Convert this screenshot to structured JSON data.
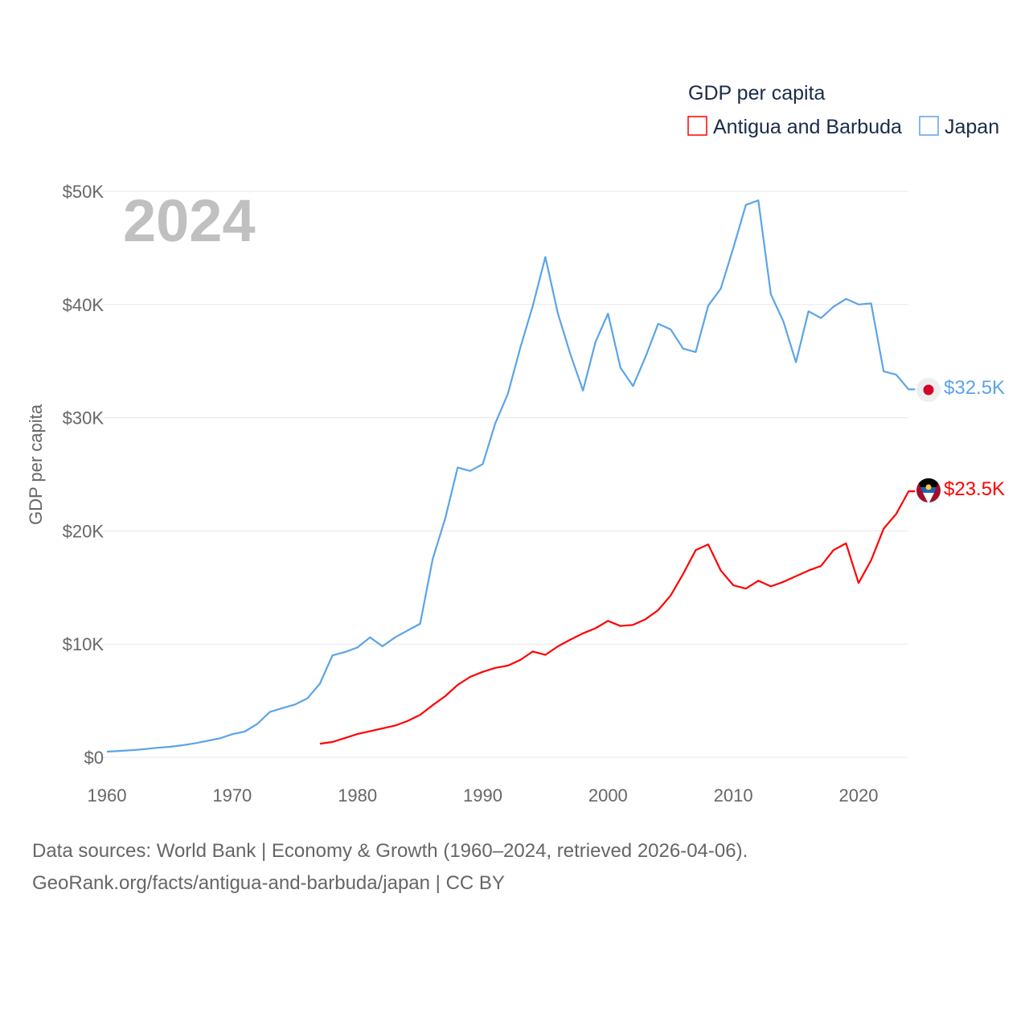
{
  "chart_data": {
    "type": "line",
    "title": "GDP per capita",
    "ylabel": "GDP per capita",
    "xlabel": "",
    "year_label": "2024",
    "xlim": [
      1960,
      2024
    ],
    "ylim": [
      0,
      50000
    ],
    "x_ticks": [
      1960,
      1970,
      1980,
      1990,
      2000,
      2010,
      2020
    ],
    "y_ticks": [
      0,
      10000,
      20000,
      30000,
      40000,
      50000
    ],
    "y_tick_labels": [
      "$0",
      "$10K",
      "$20K",
      "$30K",
      "$40K",
      "$50K"
    ],
    "grid": true,
    "legend_position": "top-right",
    "series": [
      {
        "name": "Antigua and Barbuda",
        "color": "#ff0000",
        "end_label": "$23.5K",
        "flag_icon": "antigua-and-barbuda-flag",
        "start_year": 1977,
        "values": [
          1200,
          1350,
          1700,
          2050,
          2300,
          2550,
          2800,
          3200,
          3750,
          4600,
          5400,
          6400,
          7100,
          7550,
          7900,
          8100,
          8600,
          9350,
          9050,
          9800,
          10400,
          10950,
          11400,
          12050,
          11600,
          11700,
          12200,
          13000,
          14300,
          16200,
          18300,
          18800,
          16500,
          15200,
          14900,
          15600,
          15100,
          15500,
          16000,
          16500,
          16900,
          18300,
          18900,
          15400,
          17400,
          20200,
          21500,
          23500
        ]
      },
      {
        "name": "Japan",
        "color": "#5ba4e8",
        "end_label": "$32.5K",
        "flag_icon": "japan-flag",
        "start_year": 1960,
        "values": [
          500,
          560,
          630,
          720,
          840,
          920,
          1060,
          1230,
          1450,
          1670,
          2040,
          2270,
          2950,
          4000,
          4350,
          4660,
          5200,
          6500,
          9000,
          9300,
          9700,
          10600,
          9800,
          10600,
          11200,
          11800,
          17500,
          21100,
          25600,
          25300,
          25900,
          29500,
          32100,
          36200,
          39900,
          44200,
          39200,
          35600,
          32400,
          36700,
          39200,
          34400,
          32800,
          35400,
          38300,
          37800,
          36100,
          35800,
          39900,
          41400,
          45000,
          48800,
          49200,
          40900,
          38500,
          34900,
          39400,
          38800,
          39800,
          40500,
          40000,
          40100,
          34100,
          33800,
          32500
        ]
      }
    ]
  },
  "footer": {
    "line1": "Data sources: World Bank | Economy & Growth (1960–2024, retrieved 2026-04-06).",
    "line2": "GeoRank.org/facts/antigua-and-barbuda/japan | CC BY"
  }
}
